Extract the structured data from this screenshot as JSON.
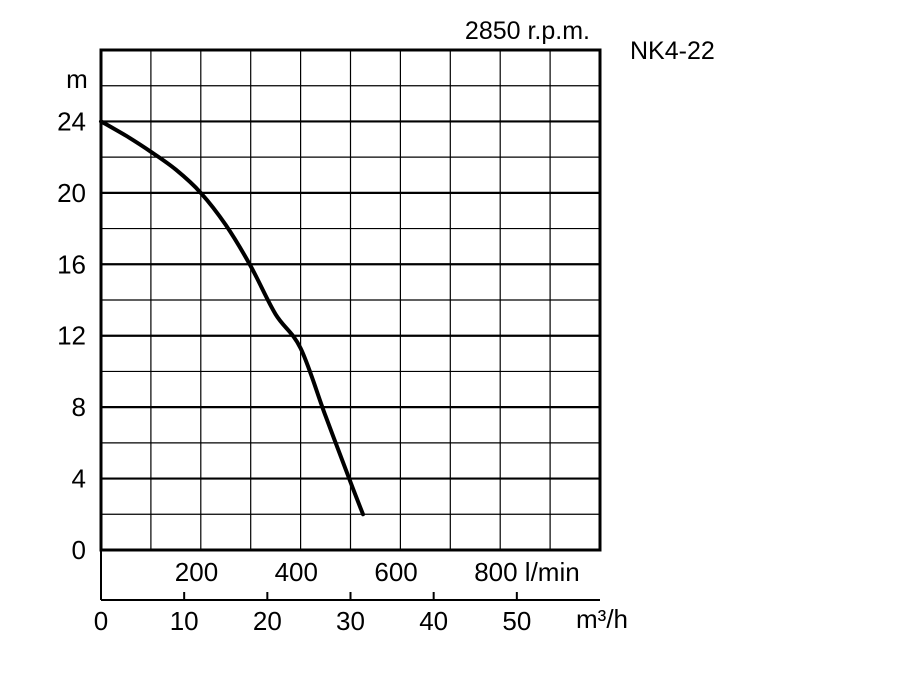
{
  "chart_data": {
    "type": "line",
    "rpm_label": "2850 r.p.m.",
    "model": "NK4-22",
    "y_unit": "m",
    "y_ticks": [
      "0",
      "4",
      "8",
      "12",
      "16",
      "20",
      "24"
    ],
    "ylim": [
      0,
      28
    ],
    "flow_lmin": {
      "unit": "l/min",
      "ticks": [
        "200",
        "400",
        "600",
        "800 l/min"
      ],
      "lim": [
        0,
        1000
      ]
    },
    "flow_m3h": {
      "unit": "m³/h",
      "ticks": [
        "0",
        "10",
        "20",
        "30",
        "40",
        "50"
      ],
      "lim": [
        0,
        60
      ]
    },
    "grid": true,
    "series": [
      {
        "x_lmin": [
          0,
          50,
          100,
          150,
          200,
          250,
          300,
          350,
          400,
          450,
          500,
          525
        ],
        "y_m": [
          24,
          23.2,
          22.3,
          21.3,
          20,
          18.2,
          15.9,
          13.2,
          11.3,
          7.5,
          3.8,
          2
        ]
      }
    ],
    "colors": {
      "line": "#000000",
      "grid": "#000000",
      "background": "#ffffff"
    }
  }
}
